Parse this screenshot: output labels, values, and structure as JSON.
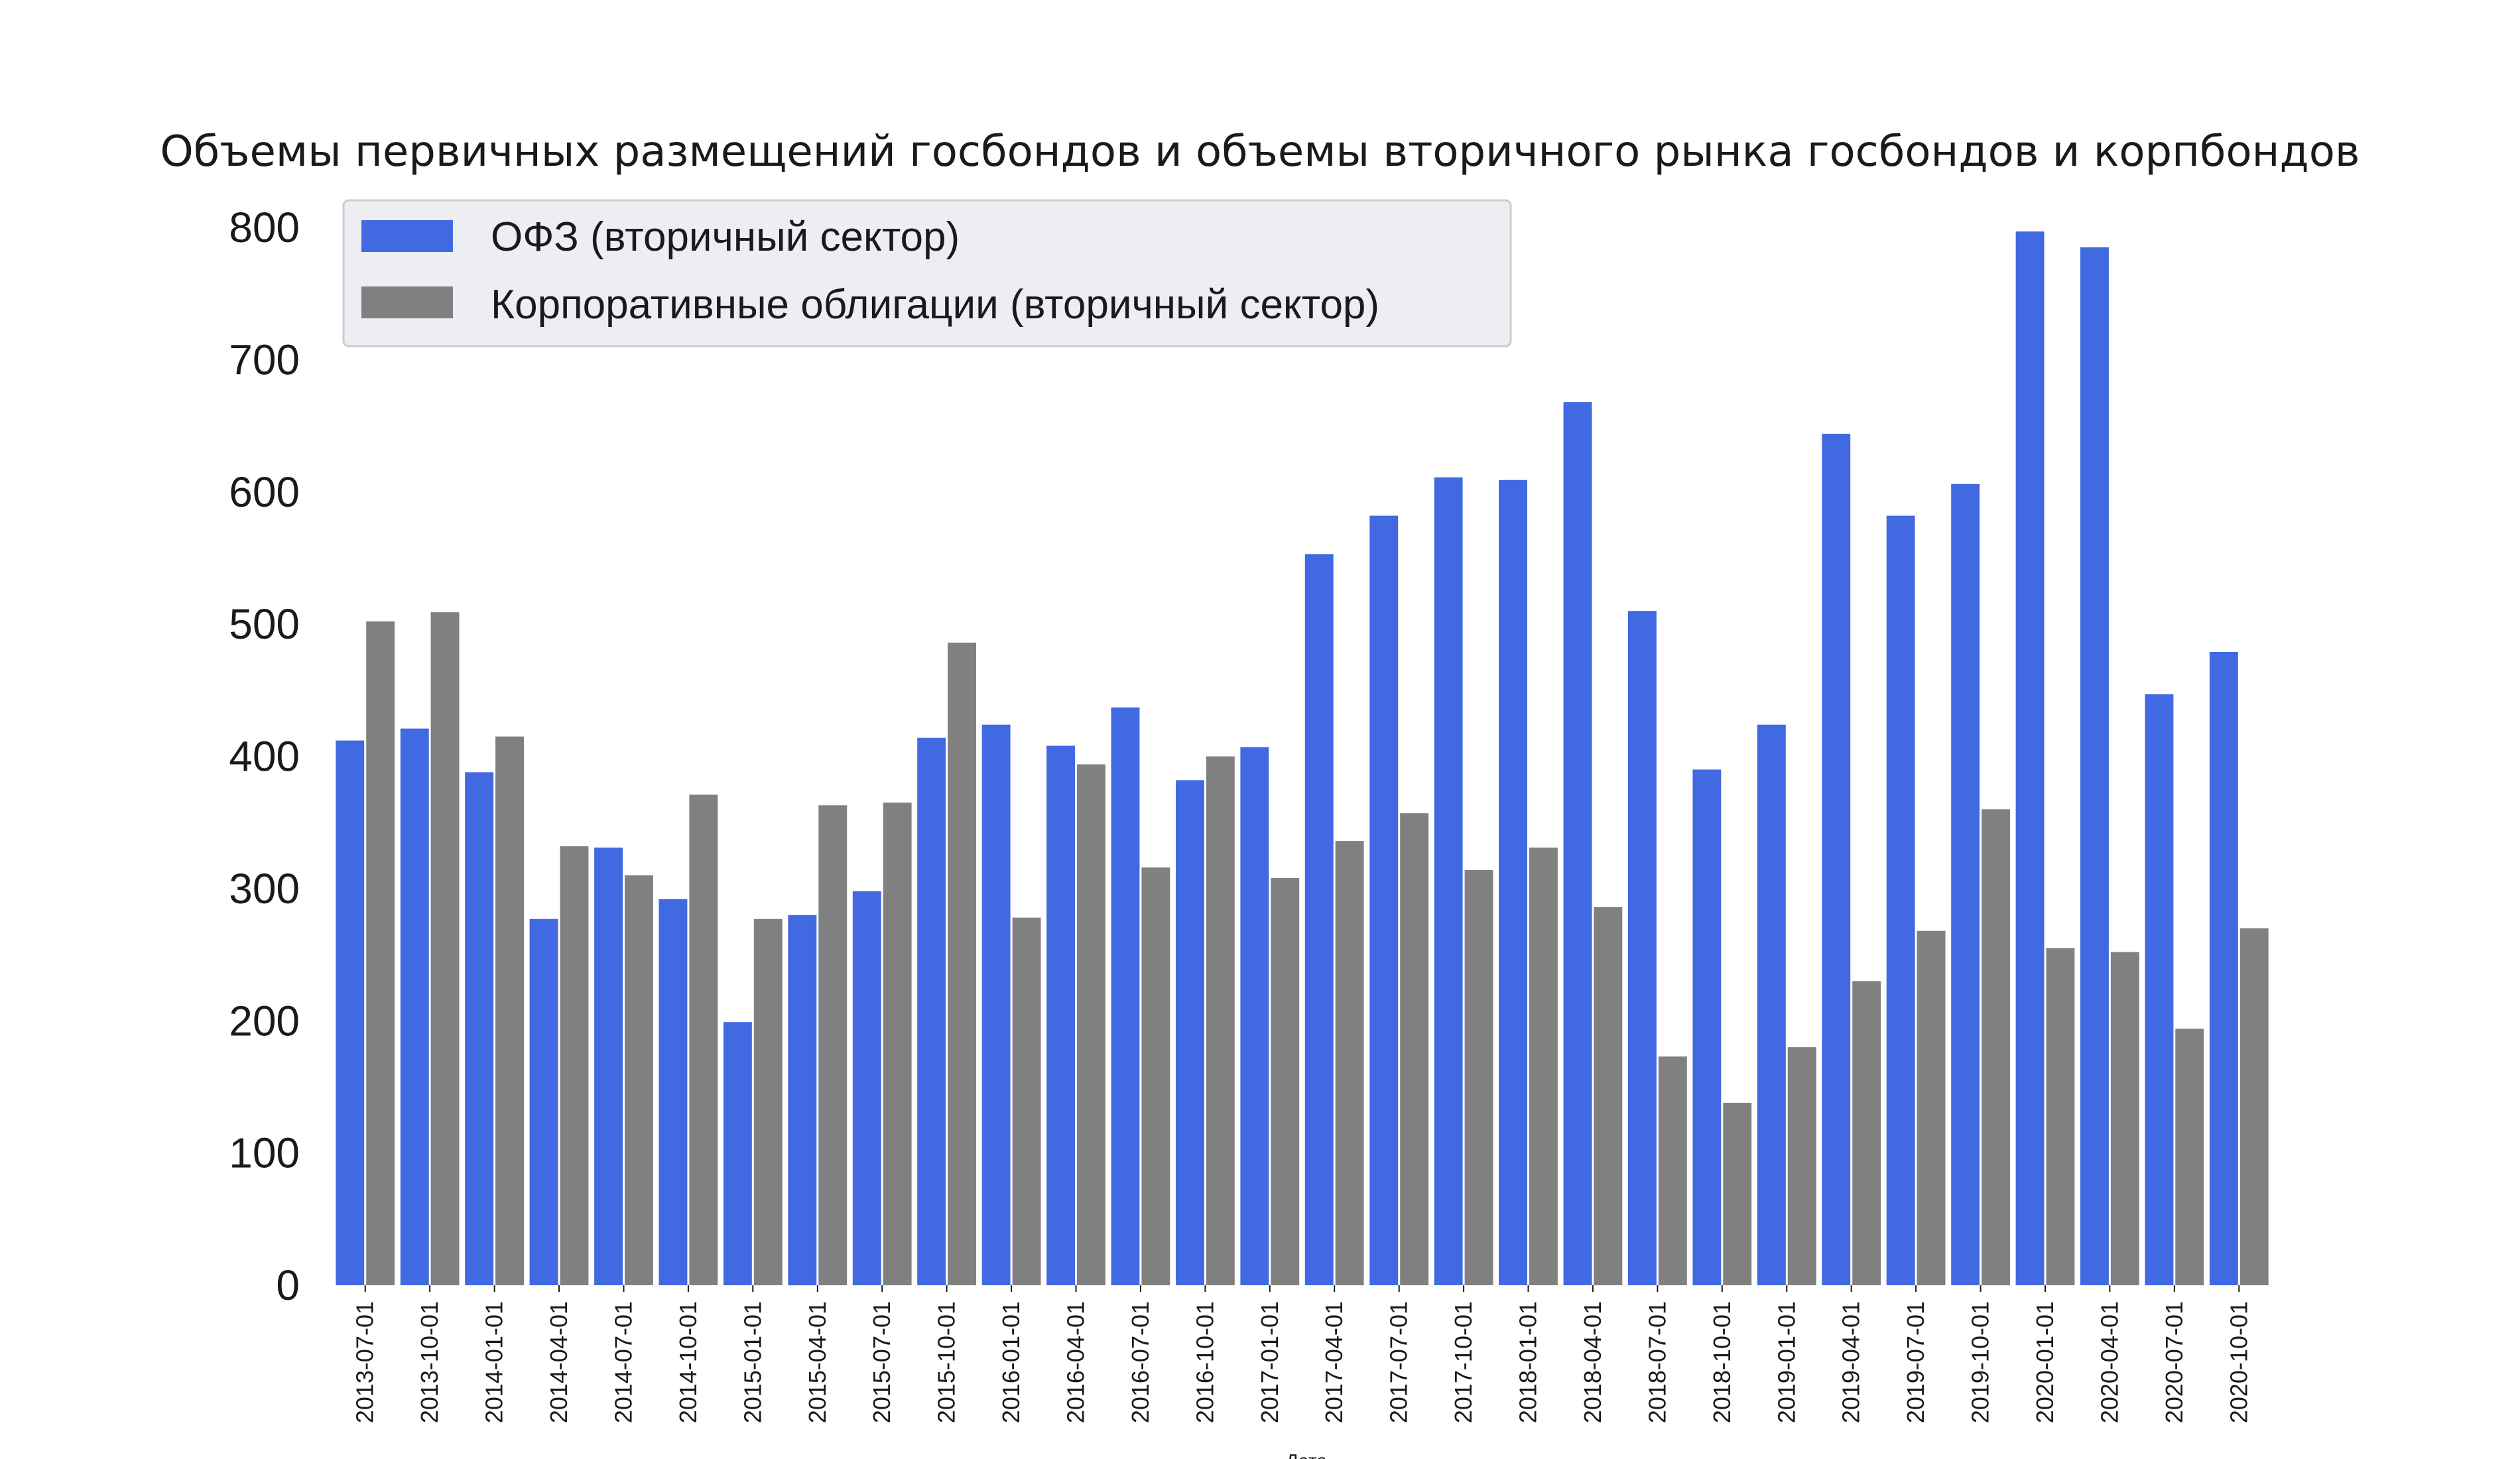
{
  "chart_data": {
    "type": "bar",
    "title": "Объемы первичных размещений госбондов и объемы вторичного рынка госбондов и корпбондов",
    "xlabel": "Дата",
    "ylabel": "",
    "ylim": [
      0,
      800
    ],
    "yticks": [
      0,
      100,
      200,
      300,
      400,
      500,
      600,
      700,
      800
    ],
    "grid": false,
    "legend_position": "top-left",
    "categories": [
      "2013-07-01",
      "2013-10-01",
      "2014-01-01",
      "2014-04-01",
      "2014-07-01",
      "2014-10-01",
      "2015-01-01",
      "2015-04-01",
      "2015-07-01",
      "2015-10-01",
      "2016-01-01",
      "2016-04-01",
      "2016-07-01",
      "2016-10-01",
      "2017-01-01",
      "2017-04-01",
      "2017-07-01",
      "2017-10-01",
      "2018-01-01",
      "2018-04-01",
      "2018-07-01",
      "2018-10-01",
      "2019-01-01",
      "2019-04-01",
      "2019-07-01",
      "2019-10-01",
      "2020-01-01",
      "2020-04-01",
      "2020-07-01",
      "2020-10-01"
    ],
    "series": [
      {
        "name": "ОФЗ (вторичный сектор)",
        "color": "#4169e1",
        "values": [
          412,
          421,
          388,
          277,
          331,
          292,
          199,
          280,
          298,
          414,
          424,
          408,
          437,
          382,
          407,
          553,
          582,
          611,
          609,
          668,
          510,
          390,
          424,
          644,
          582,
          606,
          797,
          785,
          447,
          479
        ]
      },
      {
        "name": "Корпоративные облигации (вторичный сектор)",
        "color": "#808080",
        "values": [
          502,
          509,
          415,
          332,
          310,
          371,
          277,
          363,
          365,
          486,
          278,
          394,
          316,
          400,
          308,
          336,
          357,
          314,
          331,
          286,
          173,
          138,
          180,
          230,
          268,
          360,
          255,
          252,
          194,
          270
        ]
      }
    ]
  }
}
